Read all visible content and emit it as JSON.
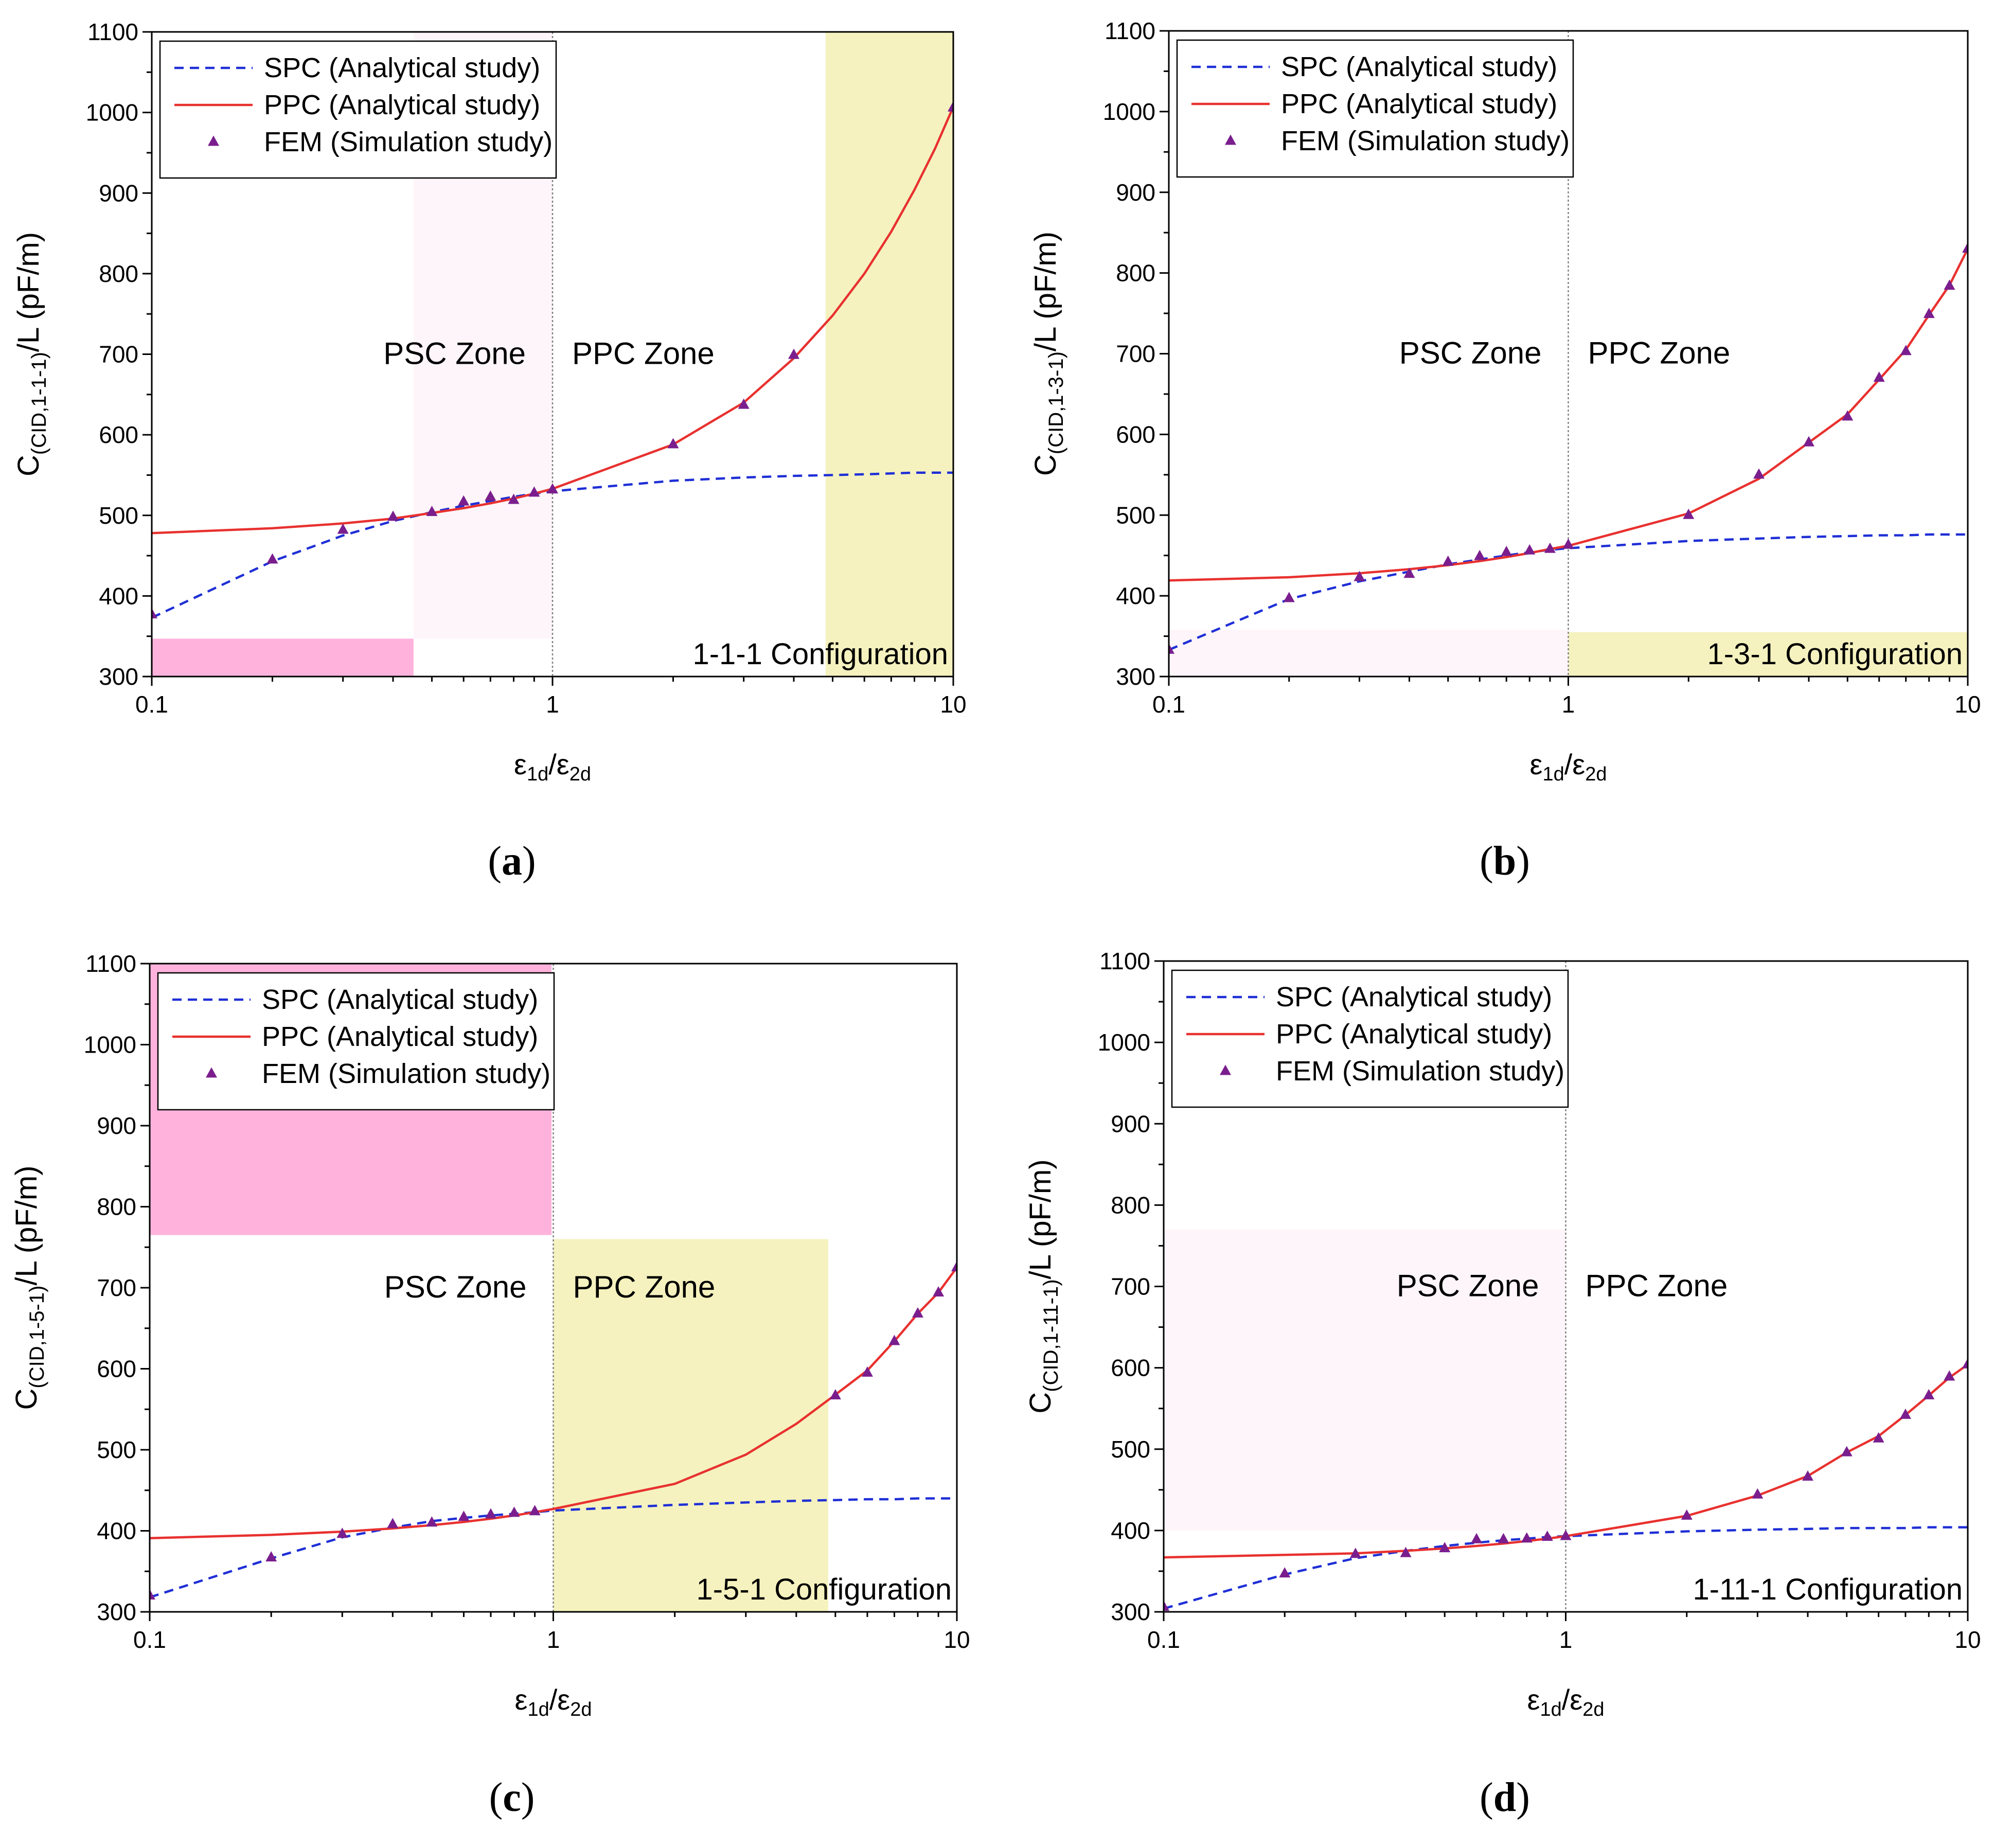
{
  "figure": {
    "captions": [
      {
        "open": "(",
        "letter": "a",
        "close": ")"
      },
      {
        "open": "(",
        "letter": "b",
        "close": ")"
      },
      {
        "open": "(",
        "letter": "c",
        "close": ")"
      },
      {
        "open": "(",
        "letter": "d",
        "close": ")"
      }
    ]
  },
  "colors": {
    "spc": "#1f2fd6",
    "ppc": "#e8312f",
    "fem": "#7a1e8e",
    "pink": "#ffb3dc",
    "pink_faint": "#fdf5f9",
    "yellow": "#f5f2bf"
  },
  "chart_data": [
    {
      "type": "line",
      "panel": "a",
      "xscale": "log",
      "xlim": [
        0.1,
        10
      ],
      "ylim": [
        300,
        1100
      ],
      "x_ticks": [
        "0.1",
        "1",
        "10"
      ],
      "y_ticks": [
        "300",
        "400",
        "500",
        "600",
        "700",
        "800",
        "900",
        "1000",
        "1100"
      ],
      "y_tick_values": [
        300,
        400,
        500,
        600,
        700,
        800,
        900,
        1000,
        1100
      ],
      "ylabel": {
        "main": "C",
        "sub": "(CID,1-1-1)",
        "tail": "/L (pF/m)"
      },
      "xlabel": {
        "e1": "ε",
        "s1": "1d",
        "slash": "/",
        "e2": "ε",
        "s2": "2d"
      },
      "zones": {
        "left": "PSC Zone",
        "right": "PPC Zone",
        "divider_x": 1
      },
      "config_label": "1-1-1 Configuration",
      "legend": [
        {
          "label": "SPC (Analytical study)",
          "kind": "dash"
        },
        {
          "label": "PPC (Analytical study)",
          "kind": "line"
        },
        {
          "label": "FEM (Simulation study)",
          "kind": "marker"
        }
      ],
      "highlights": [
        {
          "x0": 0.1,
          "x1": 0.45,
          "y0": 300,
          "y1": 347,
          "color": "pink"
        },
        {
          "x0": 0.45,
          "x1": 1.0,
          "y0": 347,
          "y1": 1100,
          "color": "pink_faint"
        },
        {
          "x0": 4.8,
          "x1": 10,
          "y0": 300,
          "y1": 1100,
          "color": "yellow"
        }
      ],
      "series": [
        {
          "name": "SPC (Analytical study)",
          "style": "dash",
          "color": "spc",
          "x": [
            0.1,
            0.2,
            0.3,
            0.4,
            0.5,
            0.6,
            0.7,
            0.8,
            0.9,
            1,
            2,
            3,
            4,
            5,
            6,
            7,
            8,
            9,
            10
          ],
          "y": [
            373,
            443,
            475,
            493,
            504,
            512,
            518,
            523,
            527,
            530,
            543,
            547,
            549,
            550,
            551,
            552,
            553,
            553,
            553
          ]
        },
        {
          "name": "PPC (Analytical study)",
          "style": "line",
          "color": "ppc",
          "x": [
            0.1,
            0.2,
            0.3,
            0.4,
            0.5,
            0.6,
            0.7,
            0.8,
            0.9,
            1,
            2,
            3,
            4,
            5,
            6,
            7,
            8,
            9,
            10
          ],
          "y": [
            478,
            484,
            490,
            496,
            503,
            509,
            515,
            521,
            527,
            533,
            588,
            640,
            695,
            748,
            800,
            852,
            904,
            955,
            1007
          ]
        },
        {
          "name": "FEM (Simulation study)",
          "style": "marker",
          "color": "fem",
          "x": [
            0.1,
            0.2,
            0.3,
            0.4,
            0.5,
            0.6,
            0.7,
            0.8,
            0.9,
            1,
            2,
            3,
            4,
            10
          ],
          "y": [
            377,
            445,
            482,
            498,
            504,
            517,
            523,
            519,
            528,
            532,
            588,
            637,
            699,
            1006
          ]
        }
      ]
    },
    {
      "type": "line",
      "panel": "b",
      "xscale": "log",
      "xlim": [
        0.1,
        10
      ],
      "ylim": [
        300,
        1100
      ],
      "x_ticks": [
        "0.1",
        "1",
        "10"
      ],
      "y_ticks": [
        "300",
        "400",
        "500",
        "600",
        "700",
        "800",
        "900",
        "1000",
        "1100"
      ],
      "y_tick_values": [
        300,
        400,
        500,
        600,
        700,
        800,
        900,
        1000,
        1100
      ],
      "ylabel": {
        "main": "C",
        "sub": "(CID,1-3-1)",
        "tail": "/L (pF/m)"
      },
      "xlabel": {
        "e1": "ε",
        "s1": "1d",
        "slash": "/",
        "e2": "ε",
        "s2": "2d"
      },
      "zones": {
        "left": "PSC Zone",
        "right": "PPC Zone",
        "divider_x": 1
      },
      "config_label": "1-3-1 Configuration",
      "legend": [
        {
          "label": "SPC (Analytical study)",
          "kind": "dash"
        },
        {
          "label": "PPC (Analytical study)",
          "kind": "line"
        },
        {
          "label": "FEM (Simulation study)",
          "kind": "marker"
        }
      ],
      "highlights": [
        {
          "x0": 0.1,
          "x1": 1.0,
          "y0": 300,
          "y1": 358,
          "color": "pink_faint"
        },
        {
          "x0": 1.0,
          "x1": 10,
          "y0": 300,
          "y1": 355,
          "color": "yellow"
        }
      ],
      "series": [
        {
          "name": "SPC (Analytical study)",
          "style": "dash",
          "color": "spc",
          "x": [
            0.1,
            0.2,
            0.3,
            0.4,
            0.5,
            0.6,
            0.7,
            0.8,
            0.9,
            1,
            2,
            3,
            4,
            5,
            6,
            7,
            8,
            9,
            10
          ],
          "y": [
            333,
            396,
            418,
            430,
            439,
            445,
            450,
            454,
            457,
            459,
            468,
            471,
            473,
            474,
            475,
            475,
            476,
            476,
            476
          ]
        },
        {
          "name": "PPC (Analytical study)",
          "style": "line",
          "color": "ppc",
          "x": [
            0.1,
            0.2,
            0.3,
            0.4,
            0.5,
            0.6,
            0.7,
            0.8,
            0.9,
            1,
            2,
            3,
            4,
            5,
            6,
            7,
            8,
            9,
            10
          ],
          "y": [
            419,
            423,
            428,
            433,
            438,
            443,
            448,
            453,
            458,
            462,
            502,
            545,
            590,
            625,
            668,
            705,
            748,
            785,
            830
          ]
        },
        {
          "name": "FEM (Simulation study)",
          "style": "marker",
          "color": "fem",
          "x": [
            0.1,
            0.2,
            0.3,
            0.4,
            0.5,
            0.6,
            0.7,
            0.8,
            0.9,
            1,
            2,
            3,
            4,
            5,
            6,
            7,
            8,
            9,
            10
          ],
          "y": [
            333,
            397,
            423,
            427,
            442,
            449,
            454,
            456,
            458,
            463,
            500,
            550,
            590,
            622,
            670,
            703,
            749,
            784,
            830
          ]
        }
      ]
    },
    {
      "type": "line",
      "panel": "c",
      "xscale": "log",
      "xlim": [
        0.1,
        10
      ],
      "ylim": [
        300,
        1100
      ],
      "x_ticks": [
        "0.1",
        "1",
        "10"
      ],
      "y_ticks": [
        "300",
        "400",
        "500",
        "600",
        "700",
        "800",
        "900",
        "1000",
        "1100"
      ],
      "y_tick_values": [
        300,
        400,
        500,
        600,
        700,
        800,
        900,
        1000,
        1100
      ],
      "ylabel": {
        "main": "C",
        "sub": "(CID,1-5-1)",
        "tail": "/L (pF/m)"
      },
      "xlabel": {
        "e1": "ε",
        "s1": "1d",
        "slash": "/",
        "e2": "ε",
        "s2": "2d"
      },
      "zones": {
        "left": "PSC Zone",
        "right": "PPC Zone",
        "divider_x": 1
      },
      "config_label": "1-5-1 Configuration",
      "legend": [
        {
          "label": "SPC (Analytical study)",
          "kind": "dash"
        },
        {
          "label": "PPC (Analytical study)",
          "kind": "line"
        },
        {
          "label": "FEM (Simulation study)",
          "kind": "marker"
        }
      ],
      "highlights": [
        {
          "x0": 0.1,
          "x1": 0.99,
          "y0": 765,
          "y1": 1100,
          "color": "pink"
        },
        {
          "x0": 1.0,
          "x1": 4.8,
          "y0": 300,
          "y1": 760,
          "color": "yellow"
        }
      ],
      "series": [
        {
          "name": "SPC (Analytical study)",
          "style": "dash",
          "color": "spc",
          "x": [
            0.1,
            0.2,
            0.3,
            0.4,
            0.5,
            0.6,
            0.7,
            0.8,
            0.9,
            1,
            2,
            3,
            4,
            5,
            6,
            7,
            8,
            9,
            10
          ],
          "y": [
            318,
            366,
            392,
            404,
            412,
            416,
            419,
            421,
            423,
            425,
            432,
            435,
            437,
            438,
            439,
            439,
            440,
            440,
            440
          ]
        },
        {
          "name": "PPC (Analytical study)",
          "style": "line",
          "color": "ppc",
          "x": [
            0.1,
            0.2,
            0.3,
            0.4,
            0.5,
            0.6,
            0.7,
            0.8,
            0.9,
            1,
            2,
            3,
            4,
            5,
            6,
            7,
            8,
            9,
            10
          ],
          "y": [
            391,
            395,
            399,
            403,
            407,
            411,
            415,
            419,
            423,
            427,
            458,
            494,
            532,
            568,
            598,
            634,
            668,
            694,
            725
          ]
        },
        {
          "name": "FEM (Simulation study)",
          "style": "marker",
          "color": "fem",
          "x": [
            0.1,
            0.2,
            0.3,
            0.4,
            0.5,
            0.6,
            0.7,
            0.8,
            0.9,
            5,
            6,
            7,
            8,
            9,
            10
          ],
          "y": [
            320,
            367,
            396,
            408,
            410,
            417,
            420,
            422,
            424,
            567,
            595,
            634,
            668,
            694,
            725
          ]
        }
      ]
    },
    {
      "type": "line",
      "panel": "d",
      "xscale": "log",
      "xlim": [
        0.1,
        10
      ],
      "ylim": [
        300,
        1100
      ],
      "x_ticks": [
        "0.1",
        "1",
        "10"
      ],
      "y_ticks": [
        "300",
        "400",
        "500",
        "600",
        "700",
        "800",
        "900",
        "1000",
        "1100"
      ],
      "y_tick_values": [
        300,
        400,
        500,
        600,
        700,
        800,
        900,
        1000,
        1100
      ],
      "ylabel": {
        "main": "C",
        "sub": "(CID,1-11-1)",
        "tail": "/L (pF/m)"
      },
      "xlabel": {
        "e1": "ε",
        "s1": "1d",
        "slash": "/",
        "e2": "ε",
        "s2": "2d"
      },
      "zones": {
        "left": "PSC Zone",
        "right": "PPC Zone",
        "divider_x": 1
      },
      "config_label": "1-11-1 Configuration",
      "legend": [
        {
          "label": "SPC (Analytical study)",
          "kind": "dash"
        },
        {
          "label": "PPC (Analytical study)",
          "kind": "line"
        },
        {
          "label": "FEM (Simulation study)",
          "kind": "marker"
        }
      ],
      "highlights": [
        {
          "x0": 0.1,
          "x1": 1.0,
          "y0": 400,
          "y1": 770,
          "color": "pink_faint"
        }
      ],
      "series": [
        {
          "name": "SPC (Analytical study)",
          "style": "dash",
          "color": "spc",
          "x": [
            0.1,
            0.2,
            0.3,
            0.4,
            0.5,
            0.6,
            0.7,
            0.8,
            0.9,
            1,
            2,
            3,
            4,
            5,
            6,
            7,
            8,
            9,
            10
          ],
          "y": [
            304,
            346,
            366,
            375,
            381,
            385,
            388,
            390,
            392,
            393,
            399,
            401,
            402,
            403,
            403,
            403,
            404,
            404,
            404
          ]
        },
        {
          "name": "PPC (Analytical study)",
          "style": "line",
          "color": "ppc",
          "x": [
            0.1,
            0.2,
            0.3,
            0.4,
            0.5,
            0.6,
            0.7,
            0.8,
            0.9,
            1,
            2,
            3,
            4,
            5,
            6,
            7,
            8,
            9,
            10
          ],
          "y": [
            367,
            370,
            372,
            375,
            378,
            381,
            384,
            387,
            390,
            393,
            418,
            443,
            467,
            496,
            516,
            542,
            566,
            588,
            604
          ]
        },
        {
          "name": "FEM (Simulation study)",
          "style": "marker",
          "color": "fem",
          "x": [
            0.1,
            0.2,
            0.3,
            0.4,
            0.5,
            0.6,
            0.7,
            0.8,
            0.9,
            1,
            2,
            3,
            4,
            5,
            6,
            7,
            8,
            9,
            10
          ],
          "y": [
            306,
            347,
            371,
            372,
            378,
            389,
            389,
            390,
            392,
            393,
            418,
            444,
            466,
            496,
            513,
            542,
            566,
            589,
            604
          ]
        }
      ]
    }
  ]
}
